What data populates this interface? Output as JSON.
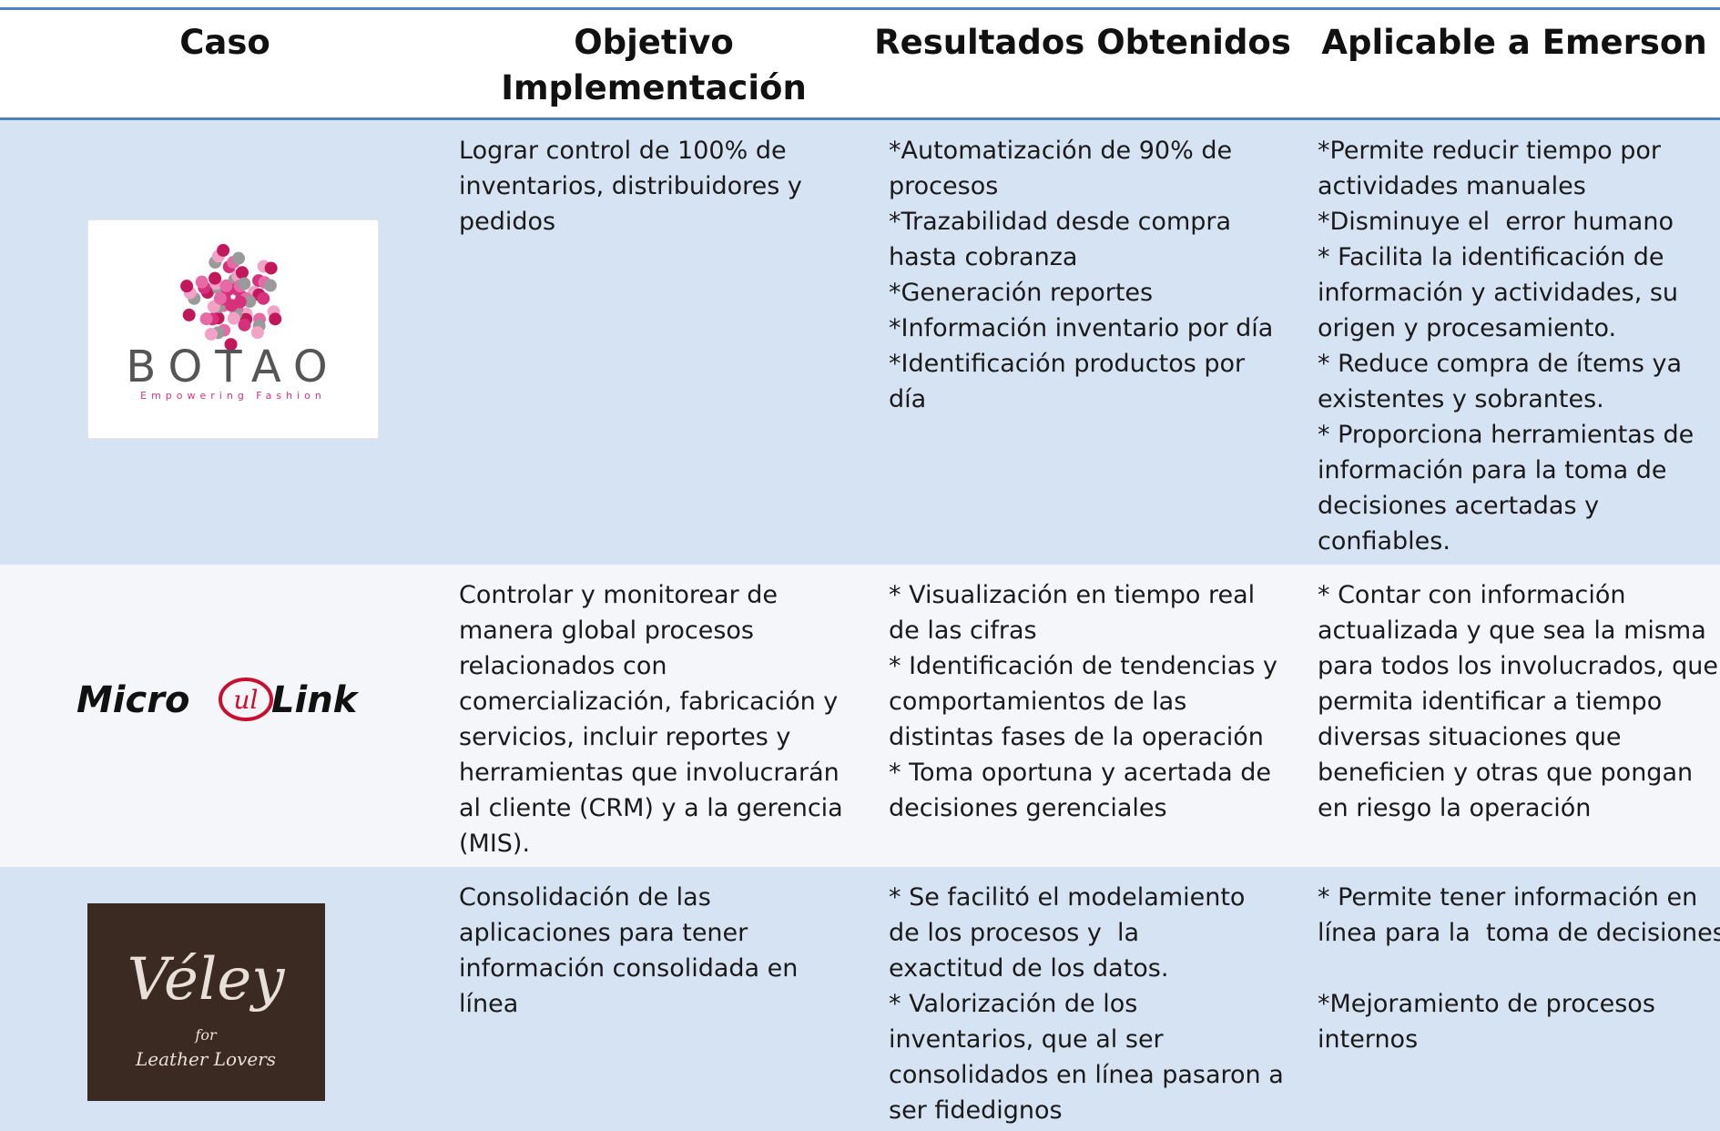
{
  "header": [
    "Caso",
    [
      "Objetivo",
      "Implementación"
    ],
    "Resultados Obtenidos",
    "Aplicable a Emerson"
  ],
  "rows": [
    {
      "logo": {
        "name": "BOTAO",
        "tagline": "Empowering Fashion"
      },
      "objetivo": [
        "Lograr control de 100% de",
        "inventarios, distribuidores y",
        "pedidos"
      ],
      "resultados": [
        "*Automatización de 90% de",
        "procesos",
        "*Trazabilidad desde compra",
        "hasta cobranza",
        "*Generación reportes",
        "*Información inventario por día",
        "*Identificación productos por",
        "día"
      ],
      "aplicable": [
        "*Permite reducir tiempo por",
        "actividades manuales",
        "*Disminuye el  error humano",
        "* Facilita la identificación de",
        "información y actividades, su",
        "origen y procesamiento.",
        "* Reduce compra de ítems ya",
        "existentes y sobrantes.",
        "* Proporciona herramientas de",
        "información para la toma de",
        "decisiones acertadas y",
        "confiables."
      ]
    },
    {
      "logo": {
        "name": "Micro",
        "mark": "ul",
        "name2": "Link"
      },
      "objetivo": [
        "Controlar y monitorear de",
        "manera global procesos",
        "relacionados con",
        "comercialización, fabricación y",
        "servicios, incluir reportes y",
        "herramientas que involucrarán",
        "al cliente (CRM) y a la gerencia",
        "(MIS)."
      ],
      "resultados": [
        "* Visualización en tiempo real",
        "de las cifras",
        "* Identificación de tendencias y",
        "comportamientos de las",
        "distintas fases de la operación",
        "* Toma oportuna y acertada de",
        "decisiones gerenciales"
      ],
      "aplicable": [
        "* Contar con información",
        "actualizada y que sea la misma",
        "para todos los involucrados, que",
        "permita identificar a tiempo",
        "diversas situaciones que",
        "beneficien y otras que pongan",
        "en riesgo la operación"
      ]
    },
    {
      "logo": {
        "name": "Véley",
        "tagline": "for",
        "tagline2": "Leather Lovers"
      },
      "objetivo": [
        "Consolidación de las",
        "aplicaciones para tener",
        "información consolidada en",
        "línea"
      ],
      "resultados": [
        "* Se facilitó el modelamiento",
        "de los procesos y  la",
        "exactitud de los datos.",
        "* Valorización de los",
        "inventarios, que al ser",
        "consolidados en línea pasaron a",
        "ser fidedignos"
      ],
      "aplicable": [
        "* Permite tener información en",
        "línea para la  toma de decisiones",
        "",
        "*Mejoramiento de procesos",
        "internos"
      ]
    }
  ]
}
